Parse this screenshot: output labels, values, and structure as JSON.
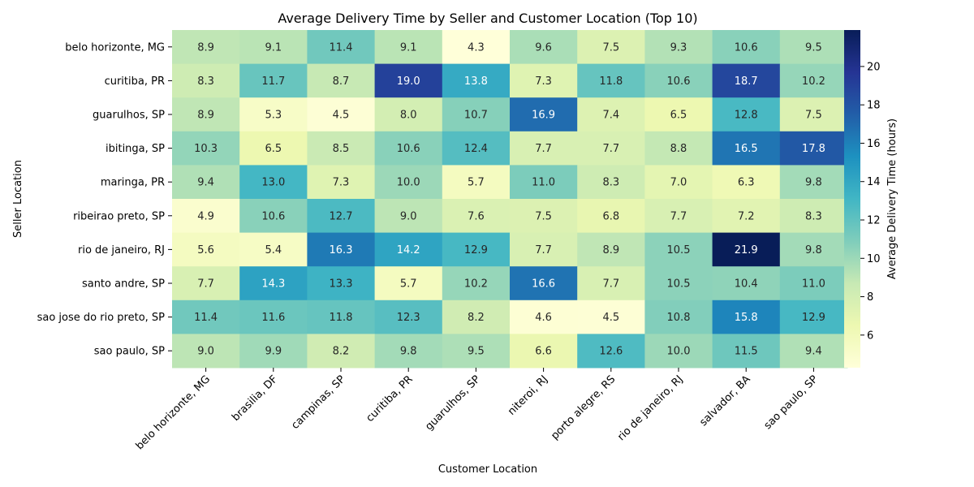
{
  "chart_data": {
    "type": "heatmap",
    "title": "Average Delivery Time by Seller and Customer Location (Top 10)",
    "xlabel": "Customer Location",
    "ylabel": "Seller Location",
    "colorbar_label": "Average Delivery Time (hours)",
    "colormap": "YlGnBu",
    "colorbar_range": [
      4.3,
      21.9
    ],
    "colorbar_ticks": [
      6,
      8,
      10,
      12,
      14,
      16,
      18,
      20
    ],
    "x_categories": [
      "belo horizonte, MG",
      "brasilia, DF",
      "campinas, SP",
      "curitiba, PR",
      "guarulhos, SP",
      "niteroi, RJ",
      "porto alegre, RS",
      "rio de janeiro, RJ",
      "salvador, BA",
      "sao paulo, SP"
    ],
    "y_categories": [
      "belo horizonte, MG",
      "curitiba, PR",
      "guarulhos, SP",
      "ibitinga, SP",
      "maringa, PR",
      "ribeirao preto, SP",
      "rio de janeiro, RJ",
      "santo andre, SP",
      "sao jose do rio preto, SP",
      "sao paulo, SP"
    ],
    "values": [
      [
        8.9,
        9.1,
        11.4,
        9.1,
        4.3,
        9.6,
        7.5,
        9.3,
        10.6,
        9.5
      ],
      [
        8.3,
        11.7,
        8.7,
        19.0,
        13.8,
        7.3,
        11.8,
        10.6,
        18.7,
        10.2
      ],
      [
        8.9,
        5.3,
        4.5,
        8.0,
        10.7,
        16.9,
        7.4,
        6.5,
        12.8,
        7.5
      ],
      [
        10.3,
        6.5,
        8.5,
        10.6,
        12.4,
        7.7,
        7.7,
        8.8,
        16.5,
        17.8
      ],
      [
        9.4,
        13.0,
        7.3,
        10.0,
        5.7,
        11.0,
        8.3,
        7.0,
        6.3,
        9.8
      ],
      [
        4.9,
        10.6,
        12.7,
        9.0,
        7.6,
        7.5,
        6.8,
        7.7,
        7.2,
        8.3
      ],
      [
        5.6,
        5.4,
        16.3,
        14.2,
        12.9,
        7.7,
        8.9,
        10.5,
        21.9,
        9.8
      ],
      [
        7.7,
        14.3,
        13.3,
        5.7,
        10.2,
        16.6,
        7.7,
        10.5,
        10.4,
        11.0
      ],
      [
        11.4,
        11.6,
        11.8,
        12.3,
        8.2,
        4.6,
        4.5,
        10.8,
        15.8,
        12.9
      ],
      [
        9.0,
        9.9,
        8.2,
        9.8,
        9.5,
        6.6,
        12.6,
        10.0,
        11.5,
        9.4
      ]
    ]
  }
}
